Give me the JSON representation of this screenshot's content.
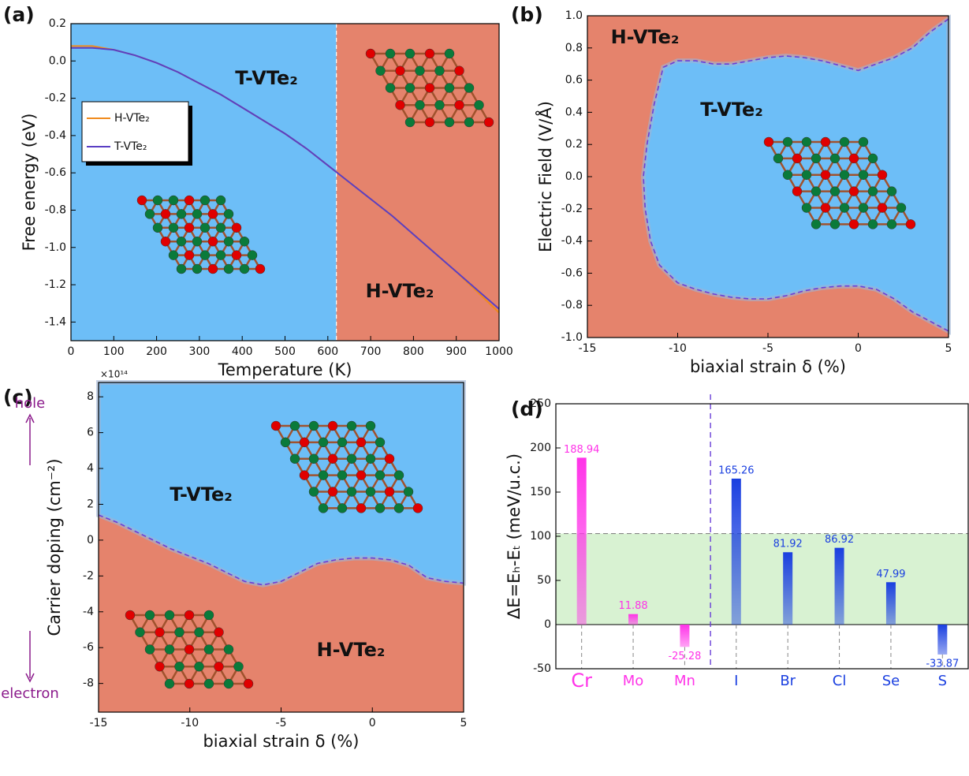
{
  "chart_data": [
    {
      "type": "line",
      "panel_label": "(a)",
      "xlabel": "Temperature (K)",
      "ylabel": "Free energy (eV)",
      "xlim": [
        0,
        1000
      ],
      "ylim": [
        -1.5,
        0.2
      ],
      "xticks": [
        0,
        100,
        200,
        300,
        400,
        500,
        600,
        700,
        800,
        900,
        1000
      ],
      "yticks": [
        0.2,
        {
          "value": 0,
          "label": "0.0"
        },
        -0.2,
        -0.4,
        -0.6,
        -0.8,
        {
          "value": -1,
          "label": "-1.0"
        },
        -1.2,
        -1.4
      ],
      "transition": 620,
      "regions": [
        {
          "name": "T-VTe₂",
          "color": "#6dbef7"
        },
        {
          "name": "H-VTe₂",
          "color": "#e5836c"
        }
      ],
      "x": [
        0,
        50,
        100,
        150,
        200,
        250,
        300,
        350,
        400,
        450,
        500,
        550,
        600,
        650,
        700,
        750,
        800,
        850,
        900,
        950,
        1000
      ],
      "series": [
        {
          "name": "H-VTe₂",
          "color": "#f08a1c",
          "values": [
            0.08,
            0.08,
            0.06,
            0.03,
            -0.01,
            -0.06,
            -0.12,
            -0.18,
            -0.25,
            -0.32,
            -0.39,
            -0.47,
            -0.56,
            -0.65,
            -0.74,
            -0.83,
            -0.93,
            -1.03,
            -1.13,
            -1.24,
            -1.35
          ]
        },
        {
          "name": "T-VTe₂",
          "color": "#5a3fc4",
          "values": [
            0.07,
            0.07,
            0.06,
            0.03,
            -0.01,
            -0.06,
            -0.12,
            -0.18,
            -0.25,
            -0.32,
            -0.39,
            -0.47,
            -0.56,
            -0.65,
            -0.74,
            -0.83,
            -0.93,
            -1.03,
            -1.13,
            -1.23,
            -1.33
          ]
        }
      ]
    },
    {
      "type": "phase-loop",
      "panel_label": "(b)",
      "xlabel": "biaxial strain δ (%)",
      "ylabel": "Electric Field (V/Å)",
      "xlim": [
        -15,
        5
      ],
      "ylim": [
        -1,
        1
      ],
      "xticks": [
        -15,
        -10,
        -5,
        0,
        5
      ],
      "yticks": [
        {
          "value": -1,
          "label": "-1.0"
        },
        -0.8,
        -0.6,
        -0.4,
        -0.2,
        {
          "value": 0,
          "label": "0.0"
        },
        0.2,
        0.4,
        0.6,
        0.8,
        {
          "value": 1,
          "label": "1.0"
        }
      ],
      "regions": [
        {
          "name": "T-VTe₂",
          "color": "#6dbef7"
        },
        {
          "name": "H-VTe₂",
          "color": "#e5836c"
        }
      ],
      "boundary": {
        "color": "#6a3fd8",
        "x": [
          5,
          4,
          3,
          2,
          1,
          0,
          -1,
          -2,
          -3,
          -4,
          -5,
          -6,
          -7,
          -8,
          -9,
          -10,
          -10.8,
          -11.3,
          -11.7,
          -11.9,
          -11.8,
          -11.5,
          -11,
          -10,
          -9,
          -8,
          -7,
          -6,
          -5,
          -4,
          -3,
          -2,
          -1,
          0,
          1,
          2,
          3,
          4,
          5
        ],
        "y": [
          0.98,
          0.9,
          0.8,
          0.74,
          0.7,
          0.66,
          0.69,
          0.72,
          0.74,
          0.75,
          0.74,
          0.72,
          0.7,
          0.7,
          0.72,
          0.72,
          0.68,
          0.45,
          0.2,
          0,
          -0.2,
          -0.4,
          -0.55,
          -0.66,
          -0.7,
          -0.73,
          -0.75,
          -0.76,
          -0.76,
          -0.74,
          -0.71,
          -0.69,
          -0.68,
          -0.68,
          -0.7,
          -0.76,
          -0.84,
          -0.9,
          -0.96
        ]
      }
    },
    {
      "type": "phase-curve",
      "panel_label": "(c)",
      "xlabel": "biaxial strain δ (%)",
      "ylabel": "Carrier doping (cm⁻²)",
      "multiplier": "×10¹⁴",
      "top_label": "hole",
      "bottom_label": "electron",
      "xlim": [
        -15,
        5
      ],
      "ylim": [
        -9.6,
        8.8
      ],
      "xticks": [
        -15,
        -10,
        -5,
        0,
        5
      ],
      "yticks": [
        8,
        6,
        4,
        2,
        0,
        -2,
        -4,
        -6,
        -8
      ],
      "regions": [
        {
          "name": "T-VTe₂",
          "color": "#6dbef7"
        },
        {
          "name": "H-VTe₂",
          "color": "#e5836c"
        }
      ],
      "boundary": {
        "color": "#6a3fd8",
        "x": [
          -15,
          -14,
          -13,
          -12,
          -11,
          -10,
          -9,
          -8,
          -7,
          -6,
          -5,
          -4,
          -3,
          -2,
          -1,
          0,
          1,
          2,
          3,
          4,
          5
        ],
        "y": [
          1.4,
          1.0,
          0.5,
          0,
          -0.5,
          -0.9,
          -1.3,
          -1.8,
          -2.3,
          -2.5,
          -2.3,
          -1.8,
          -1.3,
          -1.1,
          -1.0,
          -1.0,
          -1.1,
          -1.4,
          -2.1,
          -2.3,
          -2.4
        ]
      }
    },
    {
      "type": "bar",
      "panel_label": "(d)",
      "ylabel": "ΔE=Eₕ-Eₜ (meV/u.c.)",
      "ylim": [
        -50,
        250
      ],
      "yticks": [
        -50,
        0,
        50,
        100,
        150,
        200,
        250
      ],
      "threshold": 103,
      "threshold_color": "#d8f2d2",
      "categories": [
        "Cr",
        "Mo",
        "Mn",
        "I",
        "Br",
        "Cl",
        "Se",
        "S"
      ],
      "values": [
        188.94,
        11.88,
        -25.28,
        165.26,
        81.92,
        86.92,
        47.99,
        -33.87
      ],
      "colors": [
        "#ff33e8",
        "#ff33e8",
        "#ff33e8",
        "#1a3fe0",
        "#1a3fe0",
        "#1a3fe0",
        "#1a3fe0",
        "#1a3fe0"
      ]
    }
  ]
}
